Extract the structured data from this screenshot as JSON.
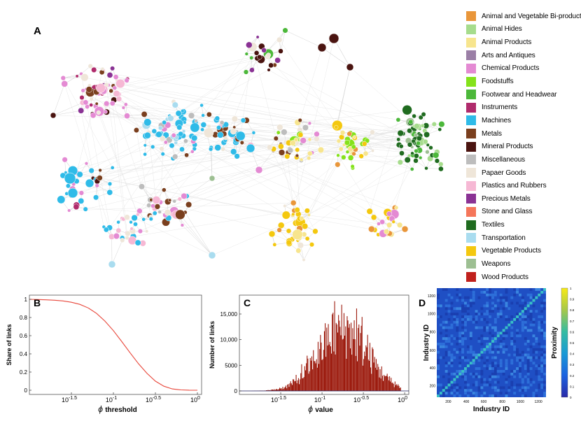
{
  "panels": {
    "A": "A",
    "B": "B",
    "C": "C",
    "D": "D"
  },
  "legend": [
    {
      "label": "Animal and Vegetable Bi-products",
      "color": "#e9963a"
    },
    {
      "label": "Animal Hides",
      "color": "#a6dc8c"
    },
    {
      "label": "Animal Products",
      "color": "#f7e58e"
    },
    {
      "label": "Arts and Antiques",
      "color": "#9b7fa6"
    },
    {
      "label": "Chemical Products",
      "color": "#e48ad3"
    },
    {
      "label": "Foodstuffs",
      "color": "#84e21a"
    },
    {
      "label": "Footwear and Headwear",
      "color": "#4cb83a"
    },
    {
      "label": "Instruments",
      "color": "#b02b6c"
    },
    {
      "label": "Machines",
      "color": "#2fbbe8"
    },
    {
      "label": "Metals",
      "color": "#7a3f1e"
    },
    {
      "label": "Mineral Products",
      "color": "#4a1410"
    },
    {
      "label": "Miscellaneous",
      "color": "#bdbdbd"
    },
    {
      "label": "Papaer Goods",
      "color": "#efe6d9"
    },
    {
      "label": "Plastics and Rubbers",
      "color": "#f6b8d4"
    },
    {
      "label": "Precious Metals",
      "color": "#8a3294"
    },
    {
      "label": "Stone and Glass",
      "color": "#f5765a"
    },
    {
      "label": "Textiles",
      "color": "#1f6b1f"
    },
    {
      "label": "Transportation",
      "color": "#a9dcef"
    },
    {
      "label": "Vegetable Products",
      "color": "#f4c80f"
    },
    {
      "label": "Weapons",
      "color": "#9dbf92"
    },
    {
      "label": "Wood Products",
      "color": "#c0201c"
    }
  ],
  "chart_data": [
    {
      "panel": "B",
      "type": "line",
      "xlabel_symbol": "ϕ",
      "xlabel": "threshold",
      "ylabel": "Share of links",
      "x_ticks": [
        {
          "base": "10",
          "exp": "-1.5",
          "value": -1.5
        },
        {
          "base": "10",
          "exp": "-1",
          "value": -1.0
        },
        {
          "base": "10",
          "exp": "-0.5",
          "value": -0.5
        },
        {
          "base": "10",
          "exp": "0",
          "value": 0.0
        }
      ],
      "y_ticks": [
        "0",
        "0.2",
        "0.4",
        "0.6",
        "0.8",
        "1"
      ],
      "xlim_log10": [
        -2.0,
        0.05
      ],
      "ylim": [
        0,
        1
      ],
      "x_log10": [
        -2.0,
        -1.9,
        -1.8,
        -1.7,
        -1.6,
        -1.5,
        -1.4,
        -1.3,
        -1.2,
        -1.1,
        -1.0,
        -0.9,
        -0.8,
        -0.7,
        -0.6,
        -0.5,
        -0.4,
        -0.3,
        -0.2,
        -0.1,
        0.0
      ],
      "y": [
        1.0,
        0.998,
        0.995,
        0.99,
        0.982,
        0.968,
        0.945,
        0.905,
        0.845,
        0.76,
        0.655,
        0.535,
        0.41,
        0.29,
        0.185,
        0.1,
        0.045,
        0.015,
        0.004,
        0.001,
        0.0
      ],
      "color": "#e8473b"
    },
    {
      "panel": "C",
      "type": "bar",
      "xlabel_symbol": "ϕ",
      "xlabel": "value",
      "ylabel": "Number of links",
      "x_ticks": [
        {
          "base": "10",
          "exp": "-1.5",
          "value": -1.5
        },
        {
          "base": "10",
          "exp": "-1",
          "value": -1.0
        },
        {
          "base": "10",
          "exp": "-0.5",
          "value": -0.5
        },
        {
          "base": "10",
          "exp": "0",
          "value": 0.0
        }
      ],
      "y_ticks": [
        "0",
        "5000",
        "10,000",
        "15,000"
      ],
      "xlim_log10": [
        -2.0,
        0.05
      ],
      "ylim": [
        0,
        18000
      ],
      "peak_log10": -0.75,
      "peak_value": 17500,
      "spread_log10": 0.3,
      "color": "#9c1b0e"
    },
    {
      "panel": "D",
      "type": "heatmap",
      "xlabel": "Industry ID",
      "ylabel": "Industry ID",
      "x_ticks": [
        "200",
        "400",
        "600",
        "800",
        "1000",
        "1200"
      ],
      "y_ticks": [
        "200",
        "400",
        "600",
        "800",
        "1000",
        "1200"
      ],
      "colorbar_label": "Proximity",
      "colorbar_ticks": [
        "0",
        "0.1",
        "0.2",
        "0.3",
        "0.4",
        "0.5",
        "0.6",
        "0.7",
        "0.8",
        "0.9",
        "1"
      ],
      "range": [
        0,
        1
      ]
    }
  ]
}
